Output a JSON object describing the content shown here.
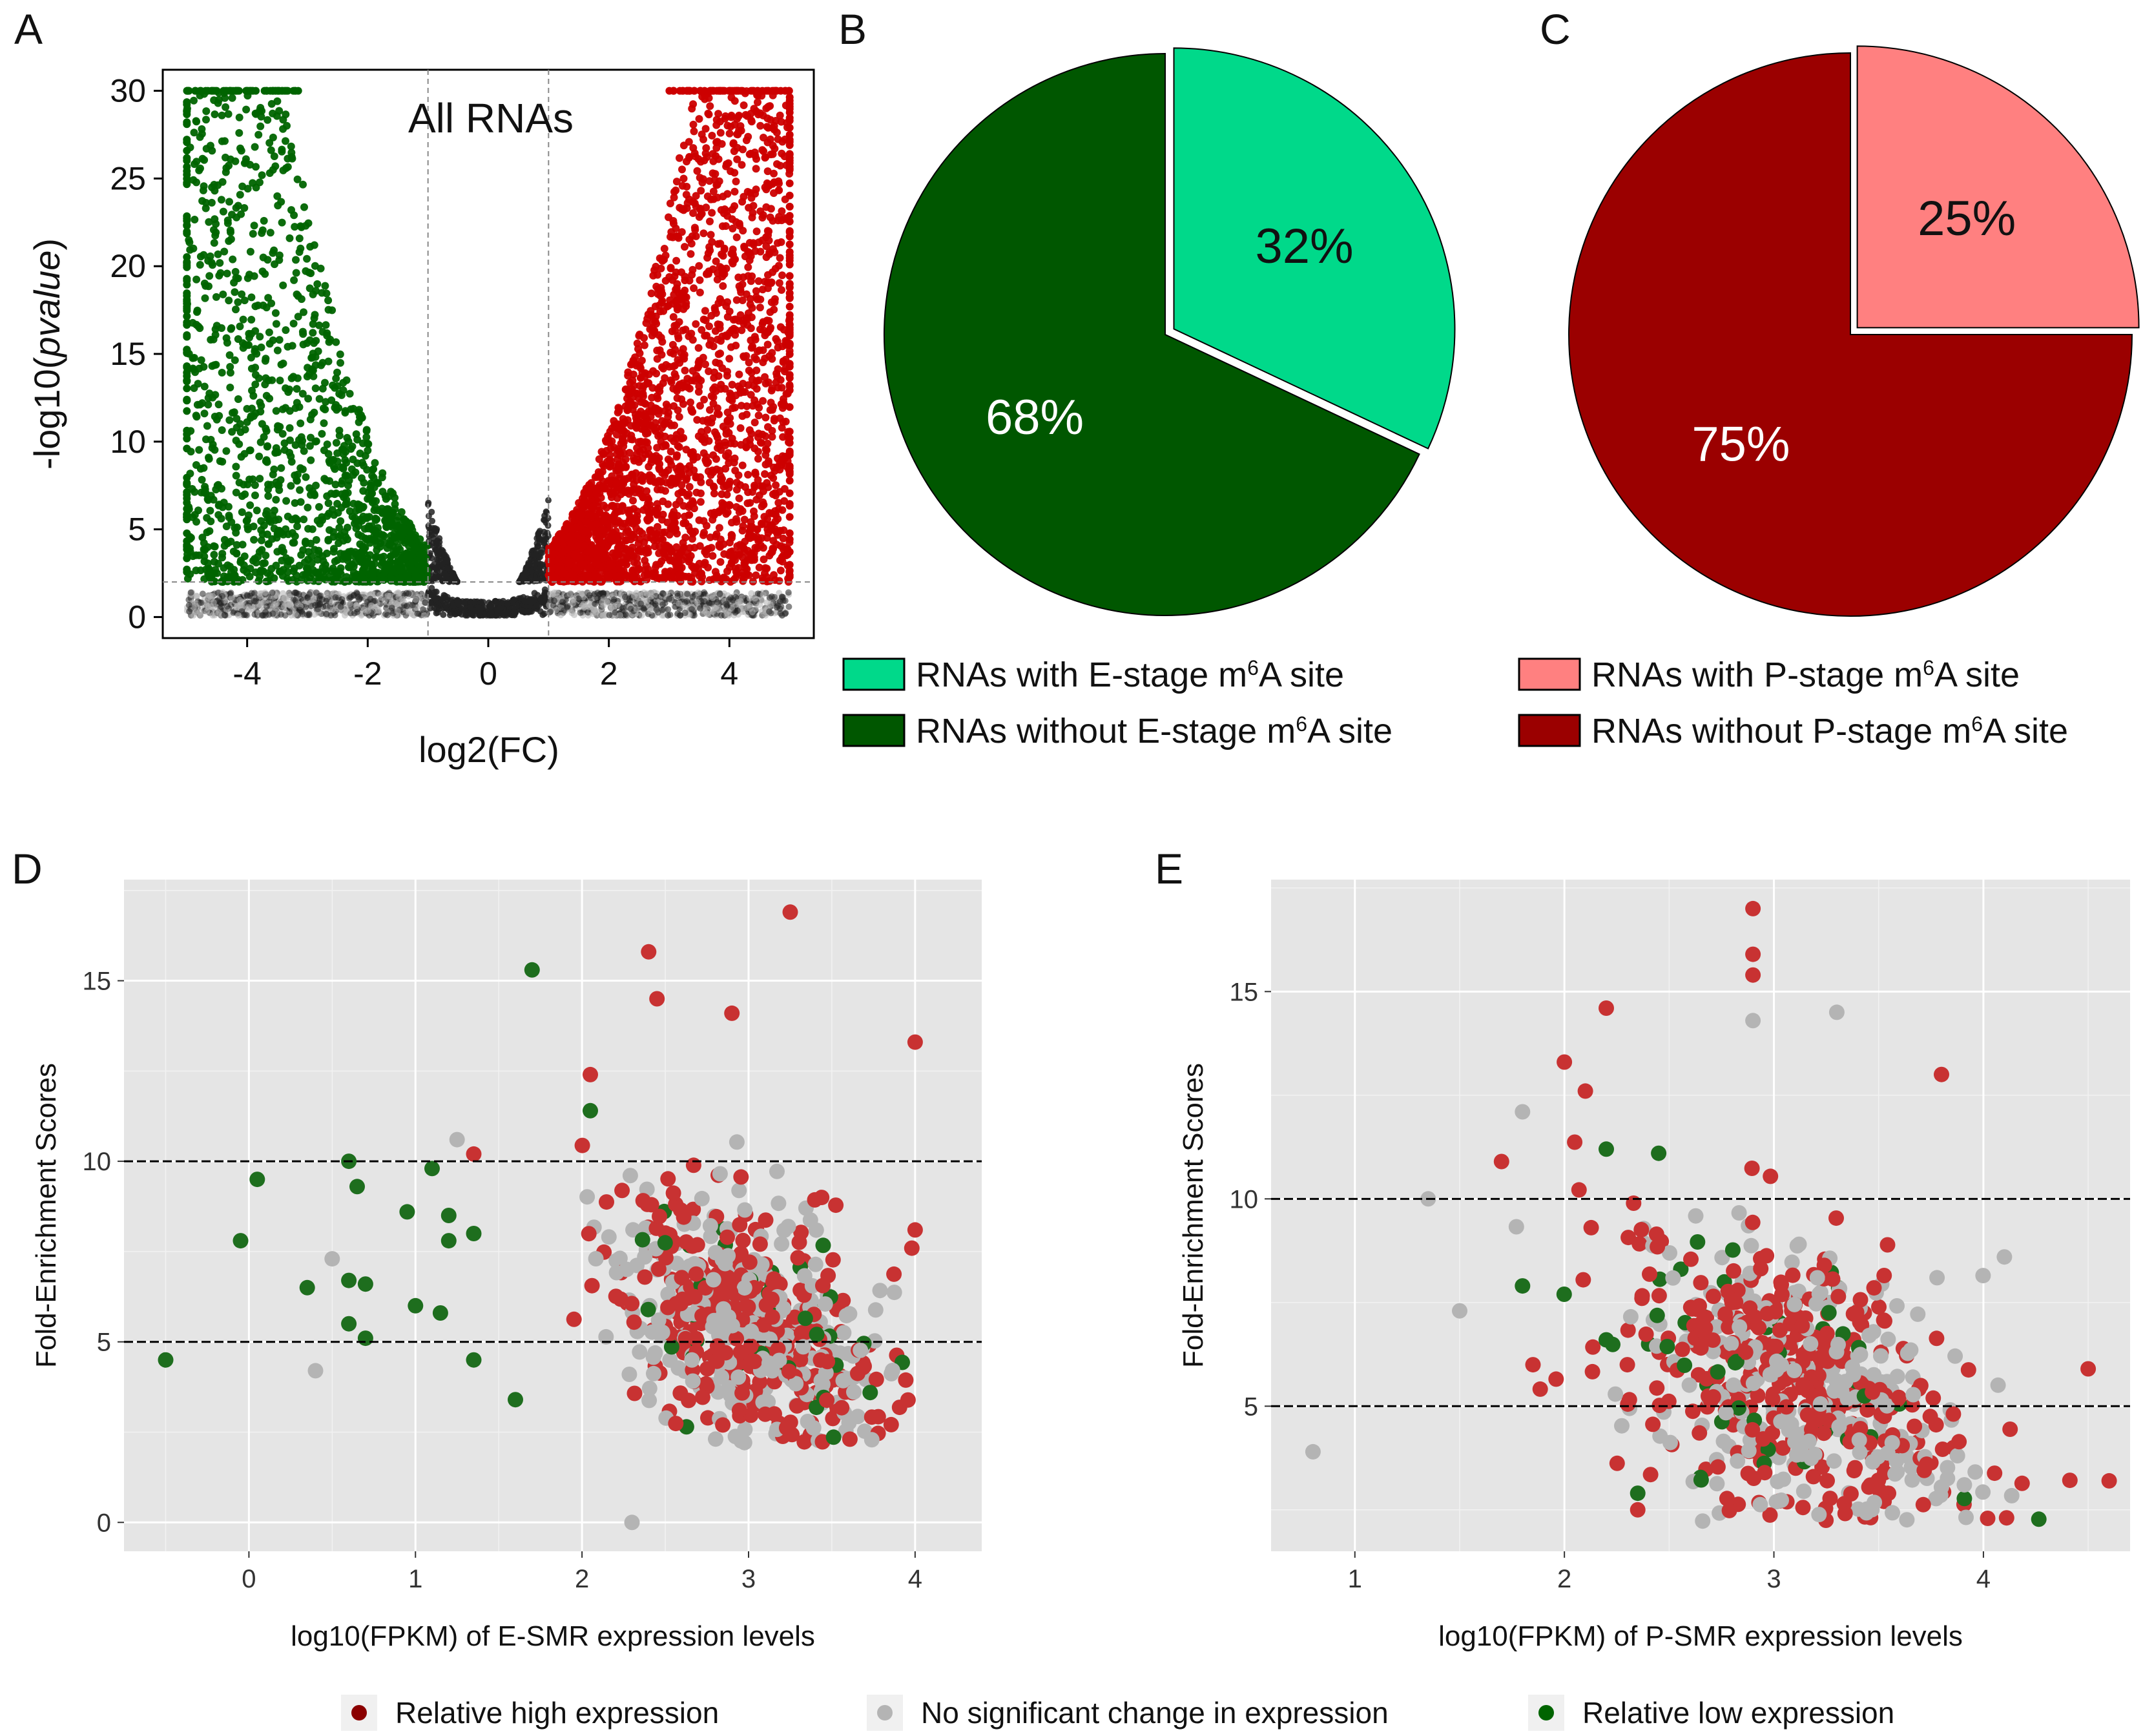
{
  "panel_labels": [
    "A",
    "B",
    "C",
    "D",
    "E"
  ],
  "colors": {
    "up": "#cc0000",
    "down": "#006400",
    "ns": "#222222",
    "ns_grey": "#b3b3b3",
    "e_with": "#00d98a",
    "e_without": "#005700",
    "p_with": "#ff8080",
    "p_without": "#9b0000",
    "high": "#c83232",
    "nochange": "#b4b4b4",
    "low": "#1e6e1e",
    "panel_bg": "#e5e5e5"
  },
  "chart_data": [
    {
      "panel": "A",
      "type": "scatter",
      "title": "All RNAs",
      "xlabel": "log2(FC)",
      "ylabel_prefix": "-log10(",
      "ylabel_italic": "pvalue",
      "ylabel_suffix": ")",
      "xlim": [
        -5.4,
        5.4
      ],
      "ylim": [
        -1.2,
        31.2
      ],
      "xticks": [
        -4,
        -2,
        0,
        2,
        4
      ],
      "xtick_labels": [
        "-4",
        "-2",
        "0",
        "2",
        "4"
      ],
      "yticks": [
        0,
        5,
        10,
        15,
        20,
        25,
        30
      ],
      "ytick_labels": [
        "0",
        "5",
        "10",
        "15",
        "20",
        "25",
        "30"
      ],
      "fc_thresholds": [
        -1,
        1
      ],
      "p_threshold": 2,
      "y_cap": 30,
      "x_cap": 5,
      "series": [
        {
          "name": "Down-regulated",
          "color_key": "down"
        },
        {
          "name": "Up-regulated",
          "color_key": "up"
        },
        {
          "name": "Not significant",
          "color_key": "ns"
        }
      ]
    },
    {
      "panel": "B",
      "type": "pie",
      "slices": [
        {
          "label": "RNAs with E-stage m6A site",
          "value": 32,
          "text": "32%",
          "color_key": "e_with",
          "exploded": true
        },
        {
          "label": "RNAs without E-stage m6A site",
          "value": 68,
          "text": "68%",
          "color_key": "e_without",
          "exploded": false
        }
      ]
    },
    {
      "panel": "C",
      "type": "pie",
      "slices": [
        {
          "label": "RNAs with P-stage m6A site",
          "value": 25,
          "text": "25%",
          "color_key": "p_with",
          "exploded": true
        },
        {
          "label": "RNAs without P-stage m6A site",
          "value": 75,
          "text": "75%",
          "color_key": "p_without",
          "exploded": false
        }
      ]
    },
    {
      "panel": "D",
      "type": "scatter",
      "xlabel": "log10(FPKM) of E-SMR expression levels",
      "ylabel": "Fold-Enrichment Scores",
      "xlim": [
        -0.75,
        4.4
      ],
      "ylim": [
        -0.8,
        17.8
      ],
      "xticks": [
        0,
        1,
        2,
        3,
        4
      ],
      "xtick_labels": [
        "0",
        "1",
        "2",
        "3",
        "4"
      ],
      "yticks": [
        0,
        5,
        10,
        15
      ],
      "ytick_labels": [
        "0",
        "5",
        "10",
        "15"
      ],
      "hlines": [
        5,
        10
      ],
      "cluster": {
        "x_center": 3.0,
        "x_min": 1.7,
        "x_max": 4.1
      },
      "highlight_points": [
        {
          "x": 3.25,
          "y": 16.9,
          "group": "high"
        },
        {
          "x": 2.4,
          "y": 15.8,
          "group": "high"
        },
        {
          "x": 2.45,
          "y": 14.5,
          "group": "high"
        },
        {
          "x": 2.9,
          "y": 14.1,
          "group": "high"
        },
        {
          "x": 4.0,
          "y": 13.3,
          "group": "high"
        },
        {
          "x": 2.05,
          "y": 12.4,
          "group": "high"
        },
        {
          "x": 4.0,
          "y": 8.1,
          "group": "high"
        },
        {
          "x": 1.35,
          "y": 10.2,
          "group": "high"
        },
        {
          "x": 1.7,
          "y": 15.3,
          "group": "low"
        },
        {
          "x": 2.05,
          "y": 11.4,
          "group": "low"
        },
        {
          "x": 0.05,
          "y": 9.5,
          "group": "low"
        },
        {
          "x": -0.05,
          "y": 7.8,
          "group": "low"
        },
        {
          "x": -0.5,
          "y": 4.5,
          "group": "low"
        },
        {
          "x": 0.6,
          "y": 10.0,
          "group": "low"
        },
        {
          "x": 0.65,
          "y": 9.3,
          "group": "low"
        },
        {
          "x": 0.35,
          "y": 6.5,
          "group": "low"
        },
        {
          "x": 0.6,
          "y": 6.7,
          "group": "low"
        },
        {
          "x": 0.7,
          "y": 6.6,
          "group": "low"
        },
        {
          "x": 0.6,
          "y": 5.5,
          "group": "low"
        },
        {
          "x": 0.7,
          "y": 5.1,
          "group": "low"
        },
        {
          "x": 0.95,
          "y": 8.6,
          "group": "low"
        },
        {
          "x": 1.0,
          "y": 6.0,
          "group": "low"
        },
        {
          "x": 1.1,
          "y": 9.8,
          "group": "low"
        },
        {
          "x": 1.2,
          "y": 8.5,
          "group": "low"
        },
        {
          "x": 1.2,
          "y": 7.8,
          "group": "low"
        },
        {
          "x": 1.15,
          "y": 5.8,
          "group": "low"
        },
        {
          "x": 1.35,
          "y": 8.0,
          "group": "low"
        },
        {
          "x": 1.35,
          "y": 4.5,
          "group": "low"
        },
        {
          "x": 1.6,
          "y": 3.4,
          "group": "low"
        },
        {
          "x": 0.4,
          "y": 4.2,
          "group": "nochange"
        },
        {
          "x": 0.5,
          "y": 7.3,
          "group": "nochange"
        },
        {
          "x": 1.25,
          "y": 10.6,
          "group": "nochange"
        },
        {
          "x": 2.3,
          "y": 0.0,
          "group": "nochange"
        }
      ]
    },
    {
      "panel": "E",
      "type": "scatter",
      "xlabel": "log10(FPKM) of P-SMR expression levels",
      "ylabel": "Fold-Enrichment Scores",
      "xlim": [
        0.6,
        4.7
      ],
      "ylim": [
        1.5,
        17.7
      ],
      "xticks": [
        1,
        2,
        3,
        4
      ],
      "xtick_labels": [
        "1",
        "2",
        "3",
        "4"
      ],
      "yticks": [
        5,
        10,
        15
      ],
      "ytick_labels": [
        "5",
        "10",
        "15"
      ],
      "hlines": [
        5,
        10
      ],
      "cluster": {
        "x_center": 3.1,
        "x_min": 1.7,
        "x_max": 4.6
      },
      "highlight_points": [
        {
          "x": 2.9,
          "y": 17.0,
          "group": "high"
        },
        {
          "x": 2.9,
          "y": 15.9,
          "group": "high"
        },
        {
          "x": 2.9,
          "y": 15.4,
          "group": "high"
        },
        {
          "x": 2.2,
          "y": 14.6,
          "group": "high"
        },
        {
          "x": 2.0,
          "y": 13.3,
          "group": "high"
        },
        {
          "x": 2.1,
          "y": 12.6,
          "group": "high"
        },
        {
          "x": 3.8,
          "y": 13.0,
          "group": "high"
        },
        {
          "x": 1.7,
          "y": 10.9,
          "group": "high"
        },
        {
          "x": 1.85,
          "y": 6.0,
          "group": "high"
        },
        {
          "x": 4.5,
          "y": 5.9,
          "group": "high"
        },
        {
          "x": 4.6,
          "y": 3.2,
          "group": "high"
        },
        {
          "x": 2.35,
          "y": 2.5,
          "group": "high"
        },
        {
          "x": 2.9,
          "y": 14.3,
          "group": "nochange"
        },
        {
          "x": 3.3,
          "y": 14.5,
          "group": "nochange"
        },
        {
          "x": 1.8,
          "y": 12.1,
          "group": "nochange"
        },
        {
          "x": 1.35,
          "y": 10.0,
          "group": "nochange"
        },
        {
          "x": 1.5,
          "y": 7.3,
          "group": "nochange"
        },
        {
          "x": 0.8,
          "y": 3.9,
          "group": "nochange"
        },
        {
          "x": 4.1,
          "y": 8.6,
          "group": "nochange"
        },
        {
          "x": 2.2,
          "y": 11.2,
          "group": "low"
        },
        {
          "x": 1.8,
          "y": 7.9,
          "group": "low"
        },
        {
          "x": 2.45,
          "y": 11.1,
          "group": "low"
        },
        {
          "x": 2.2,
          "y": 6.6,
          "group": "low"
        },
        {
          "x": 2.35,
          "y": 2.9,
          "group": "low"
        }
      ]
    }
  ],
  "legend_b": [
    {
      "pre": "RNAs with E-stage m",
      "sup": "6",
      "post": "A site"
    },
    {
      "pre": "RNAs without E-stage m",
      "sup": "6",
      "post": "A site"
    }
  ],
  "legend_c": [
    {
      "pre": "RNAs with P-stage m",
      "sup": "6",
      "post": "A site"
    },
    {
      "pre": "RNAs without P-stage m",
      "sup": "6",
      "post": "A site"
    }
  ],
  "bottom_legend": [
    {
      "label": "Relative high expression",
      "color_key": "high"
    },
    {
      "label": "No significant change in expression",
      "color_key": "nochange"
    },
    {
      "label": "Relative low expression",
      "color_key": "low"
    }
  ]
}
